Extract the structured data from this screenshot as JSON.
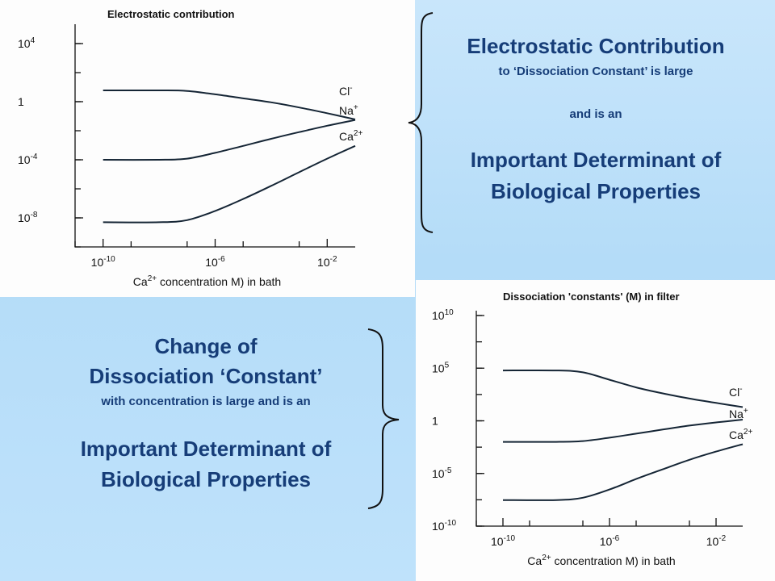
{
  "colors": {
    "background": "#bfe2fb",
    "text_blue": "#163d78",
    "curve": "#152535"
  },
  "callout_top": {
    "line1": "Electrostatic Contribution",
    "line2": "to ‘Dissociation Constant’ is large",
    "line3": "and is an",
    "line4": "Important Determinant of",
    "line5": "Biological Properties"
  },
  "callout_bottom": {
    "line1": "Change of",
    "line2": "Dissociation ‘Constant’",
    "line3": "with concentration is large and is an",
    "line4": "Important Determinant of",
    "line5": "Biological Properties"
  },
  "chart_data": [
    {
      "type": "line",
      "title": "Electrostatic contribution",
      "xlabel": {
        "base": "Ca",
        "sup": "2+",
        "text": " concentration  M) in bath"
      },
      "x_scale": "log",
      "y_scale": "log",
      "xlim": [
        1e-11,
        0.1
      ],
      "ylim": [
        1e-10,
        100000.0
      ],
      "x_ticks": [
        {
          "base": "10",
          "sup": "-10",
          "value": 1e-10
        },
        {
          "base": "10",
          "sup": "-6",
          "value": 1e-06
        },
        {
          "base": "10",
          "sup": "-2",
          "value": 0.01
        }
      ],
      "y_ticks": [
        {
          "base": "10",
          "sup": "4",
          "value": 10000.0
        },
        {
          "base": "1",
          "sup": "",
          "value": 1
        },
        {
          "base": "10",
          "sup": "-4",
          "value": 0.0001
        },
        {
          "base": "10",
          "sup": "-8",
          "value": 1e-08
        }
      ],
      "grid": false,
      "series": [
        {
          "name": "Cl",
          "sup": "-",
          "x": [
            1e-10,
            1e-08,
            1e-07,
            1e-06,
            1e-05,
            0.0001,
            0.001,
            0.01,
            0.1
          ],
          "y": [
            6,
            6,
            5.5,
            3.2,
            1.7,
            0.9,
            0.4,
            0.16,
            0.06
          ]
        },
        {
          "name": "Na",
          "sup": "+",
          "x": [
            1e-10,
            1e-08,
            1e-07,
            1e-06,
            1e-05,
            0.0001,
            0.001,
            0.01,
            0.1
          ],
          "y": [
            0.0001,
            0.0001,
            0.00012,
            0.0003,
            0.0009,
            0.0028,
            0.008,
            0.022,
            0.055
          ]
        },
        {
          "name": "Ca",
          "sup": "2+",
          "x": [
            1e-10,
            1e-08,
            1e-07,
            1e-06,
            1e-05,
            0.0001,
            0.001,
            0.01,
            0.1
          ],
          "y": [
            5e-09,
            5e-09,
            7e-09,
            3e-08,
            2e-07,
            1.6e-06,
            1.4e-05,
            0.00012,
            0.0009
          ]
        }
      ]
    },
    {
      "type": "line",
      "title": "Dissociation 'constants' (M) in filter",
      "xlabel": {
        "base": "Ca",
        "sup": "2+",
        "text": " concentration  M) in bath"
      },
      "x_scale": "log",
      "y_scale": "log",
      "xlim": [
        1e-11,
        0.1
      ],
      "ylim": [
        1e-10,
        10000000000.0
      ],
      "x_ticks": [
        {
          "base": "10",
          "sup": "-10",
          "value": 1e-10
        },
        {
          "base": "10",
          "sup": "-6",
          "value": 1e-06
        },
        {
          "base": "10",
          "sup": "-2",
          "value": 0.01
        }
      ],
      "y_ticks": [
        {
          "base": "10",
          "sup": "10",
          "value": 10000000000.0
        },
        {
          "base": "10",
          "sup": "5",
          "value": 100000.0
        },
        {
          "base": "1",
          "sup": "",
          "value": 1
        },
        {
          "base": "10",
          "sup": "-5",
          "value": 1e-05
        },
        {
          "base": "10",
          "sup": "-10",
          "value": 1e-10
        }
      ],
      "grid": false,
      "series": [
        {
          "name": "Cl",
          "sup": "-",
          "x": [
            1e-10,
            1e-08,
            1e-07,
            1e-06,
            1e-05,
            0.0001,
            0.001,
            0.01,
            0.1
          ],
          "y": [
            60000,
            60000,
            40000,
            8000,
            1500,
            400,
            130,
            50,
            20
          ]
        },
        {
          "name": "Na",
          "sup": "+",
          "x": [
            1e-10,
            1e-08,
            1e-07,
            1e-06,
            1e-05,
            0.0001,
            0.001,
            0.01,
            0.1
          ],
          "y": [
            0.01,
            0.01,
            0.012,
            0.025,
            0.06,
            0.15,
            0.35,
            0.7,
            1.3
          ]
        },
        {
          "name": "Ca",
          "sup": "2+",
          "x": [
            1e-10,
            1e-08,
            1e-07,
            1e-06,
            1e-05,
            0.0001,
            0.001,
            0.01,
            0.1
          ],
          "y": [
            3e-08,
            3e-08,
            5e-08,
            3e-07,
            3e-06,
            2.5e-05,
            0.0002,
            0.0012,
            0.006
          ]
        }
      ]
    }
  ]
}
